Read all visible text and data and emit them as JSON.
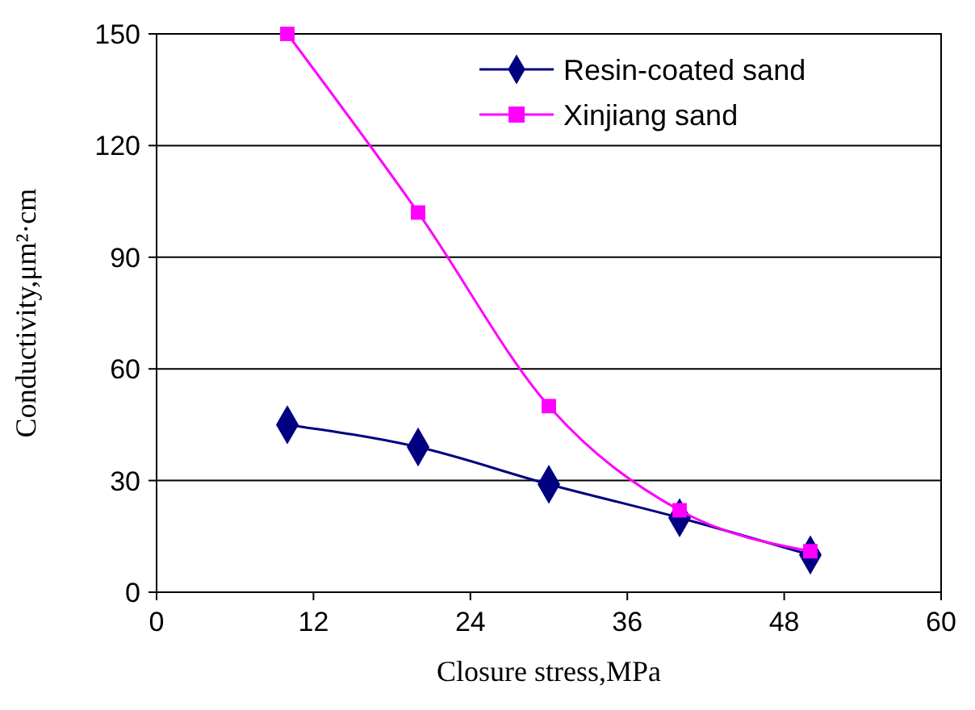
{
  "chart_data": {
    "type": "line",
    "xlabel": "Closure stress,MPa",
    "ylabel": "Conductivity,μm²·cm",
    "x": [
      10,
      20,
      30,
      40,
      50
    ],
    "series": [
      {
        "name": "Resin-coated sand",
        "color": "#000080",
        "marker": "diamond",
        "values": [
          45,
          39,
          29,
          20,
          10
        ]
      },
      {
        "name": "Xinjiang sand",
        "color": "#ff00ff",
        "marker": "square",
        "values": [
          150,
          102,
          50,
          22,
          11
        ]
      }
    ],
    "xlim": [
      0,
      60
    ],
    "xticks": [
      0,
      12,
      24,
      36,
      48,
      60
    ],
    "ylim": [
      0,
      150
    ],
    "yticks": [
      0,
      30,
      60,
      90,
      120,
      150
    ],
    "grid": "y",
    "legend": "top right",
    "line_style": "solid"
  }
}
